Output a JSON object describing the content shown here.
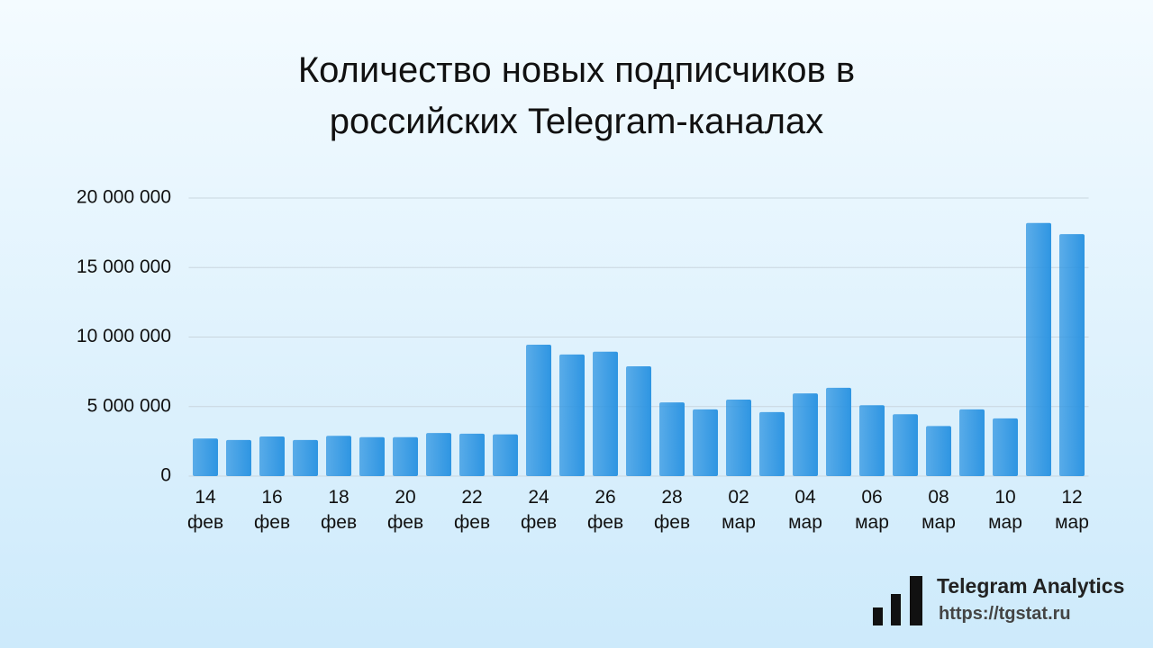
{
  "chart_data": {
    "type": "bar",
    "title": "Количество новых подписчиков в российских Telegram-каналах",
    "categories": [
      "14 фев",
      null,
      "16 фев",
      null,
      "18 фев",
      null,
      "20 фев",
      null,
      "22 фев",
      null,
      "24 фев",
      null,
      "26 фев",
      null,
      "28 фев",
      null,
      "02 мар",
      null,
      "04 мар",
      null,
      "06 мар",
      null,
      "08 мар",
      null,
      "10 мар",
      null,
      "12 мар"
    ],
    "values": [
      2700000,
      2600000,
      2850000,
      2600000,
      2900000,
      2800000,
      2800000,
      3100000,
      3050000,
      3000000,
      9450000,
      8750000,
      8950000,
      7900000,
      5300000,
      4800000,
      5500000,
      4600000,
      5950000,
      6350000,
      5100000,
      4450000,
      3600000,
      4800000,
      4150000,
      18200000,
      17400000
    ],
    "color": "#2e95e2",
    "ylim": [
      0,
      20000000
    ],
    "yticks": [
      0,
      {
        "value": 5000000,
        "label": "5 000 000"
      },
      {
        "value": 10000000,
        "label": "10 000 000"
      },
      {
        "value": 15000000,
        "label": "15 000 000"
      },
      {
        "value": 20000000,
        "label": "20 000 000"
      }
    ],
    "grid": true
  },
  "logo": {
    "name": "Telegram Analytics",
    "url": "https://tgstat.ru"
  }
}
